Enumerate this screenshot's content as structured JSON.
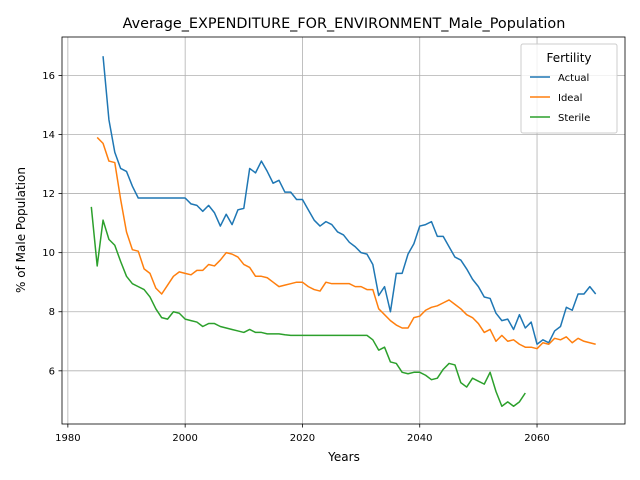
{
  "chart_data": {
    "type": "line",
    "title": "Average_EXPENDITURE_FOR_ENVIRONMENT_Male_Population",
    "xlabel": "Years",
    "ylabel": "% of Male Population",
    "xlim": [
      1979,
      2075
    ],
    "ylim": [
      4.2,
      17.3
    ],
    "xticks": [
      1980,
      2000,
      2020,
      2040,
      2060
    ],
    "yticks": [
      6,
      8,
      10,
      12,
      14,
      16
    ],
    "grid": true,
    "legend": {
      "title": "Fertility",
      "position": "upper right"
    },
    "series": [
      {
        "name": "Actual",
        "color": "#1f77b4",
        "points": [
          [
            1986,
            16.65
          ],
          [
            1987,
            14.5
          ],
          [
            1988,
            13.4
          ],
          [
            1989,
            12.85
          ],
          [
            1990,
            12.75
          ],
          [
            1991,
            12.25
          ],
          [
            1992,
            11.85
          ],
          [
            1993,
            11.85
          ],
          [
            1994,
            11.85
          ],
          [
            1995,
            11.85
          ],
          [
            1996,
            11.85
          ],
          [
            1997,
            11.85
          ],
          [
            1998,
            11.85
          ],
          [
            1999,
            11.85
          ],
          [
            2000,
            11.85
          ],
          [
            2001,
            11.65
          ],
          [
            2002,
            11.6
          ],
          [
            2003,
            11.4
          ],
          [
            2004,
            11.6
          ],
          [
            2005,
            11.35
          ],
          [
            2006,
            10.9
          ],
          [
            2007,
            11.3
          ],
          [
            2008,
            10.95
          ],
          [
            2009,
            11.45
          ],
          [
            2010,
            11.5
          ],
          [
            2011,
            12.85
          ],
          [
            2012,
            12.7
          ],
          [
            2013,
            13.1
          ],
          [
            2014,
            12.75
          ],
          [
            2015,
            12.35
          ],
          [
            2016,
            12.45
          ],
          [
            2017,
            12.05
          ],
          [
            2018,
            12.05
          ],
          [
            2019,
            11.8
          ],
          [
            2020,
            11.8
          ],
          [
            2021,
            11.45
          ],
          [
            2022,
            11.1
          ],
          [
            2023,
            10.9
          ],
          [
            2024,
            11.05
          ],
          [
            2025,
            10.95
          ],
          [
            2026,
            10.7
          ],
          [
            2027,
            10.6
          ],
          [
            2028,
            10.35
          ],
          [
            2029,
            10.2
          ],
          [
            2030,
            10.0
          ],
          [
            2031,
            9.95
          ],
          [
            2032,
            9.6
          ],
          [
            2033,
            8.55
          ],
          [
            2034,
            8.85
          ],
          [
            2035,
            8.0
          ],
          [
            2036,
            9.3
          ],
          [
            2037,
            9.3
          ],
          [
            2038,
            9.95
          ],
          [
            2039,
            10.3
          ],
          [
            2040,
            10.9
          ],
          [
            2041,
            10.95
          ],
          [
            2042,
            11.05
          ],
          [
            2043,
            10.55
          ],
          [
            2044,
            10.55
          ],
          [
            2045,
            10.2
          ],
          [
            2046,
            9.85
          ],
          [
            2047,
            9.75
          ],
          [
            2048,
            9.45
          ],
          [
            2049,
            9.1
          ],
          [
            2050,
            8.85
          ],
          [
            2051,
            8.5
          ],
          [
            2052,
            8.45
          ],
          [
            2053,
            7.95
          ],
          [
            2054,
            7.7
          ],
          [
            2055,
            7.75
          ],
          [
            2056,
            7.4
          ],
          [
            2057,
            7.9
          ],
          [
            2058,
            7.45
          ],
          [
            2059,
            7.65
          ],
          [
            2060,
            6.9
          ],
          [
            2061,
            7.05
          ],
          [
            2062,
            6.95
          ],
          [
            2063,
            7.35
          ],
          [
            2064,
            7.5
          ],
          [
            2065,
            8.15
          ],
          [
            2066,
            8.05
          ],
          [
            2067,
            8.6
          ],
          [
            2068,
            8.6
          ],
          [
            2069,
            8.85
          ],
          [
            2070,
            8.6
          ]
        ]
      },
      {
        "name": "Ideal",
        "color": "#ff7f0e",
        "points": [
          [
            1985,
            13.9
          ],
          [
            1986,
            13.7
          ],
          [
            1987,
            13.1
          ],
          [
            1988,
            13.05
          ],
          [
            1989,
            11.8
          ],
          [
            1990,
            10.7
          ],
          [
            1991,
            10.1
          ],
          [
            1992,
            10.05
          ],
          [
            1993,
            9.45
          ],
          [
            1994,
            9.3
          ],
          [
            1995,
            8.8
          ],
          [
            1996,
            8.6
          ],
          [
            1997,
            8.9
          ],
          [
            1998,
            9.2
          ],
          [
            1999,
            9.35
          ],
          [
            2000,
            9.3
          ],
          [
            2001,
            9.25
          ],
          [
            2002,
            9.4
          ],
          [
            2003,
            9.4
          ],
          [
            2004,
            9.6
          ],
          [
            2005,
            9.55
          ],
          [
            2006,
            9.75
          ],
          [
            2007,
            10.0
          ],
          [
            2008,
            9.95
          ],
          [
            2009,
            9.85
          ],
          [
            2010,
            9.6
          ],
          [
            2011,
            9.5
          ],
          [
            2012,
            9.2
          ],
          [
            2013,
            9.2
          ],
          [
            2014,
            9.15
          ],
          [
            2015,
            9.0
          ],
          [
            2016,
            8.85
          ],
          [
            2017,
            8.9
          ],
          [
            2018,
            8.95
          ],
          [
            2019,
            9.0
          ],
          [
            2020,
            9.0
          ],
          [
            2021,
            8.85
          ],
          [
            2022,
            8.75
          ],
          [
            2023,
            8.7
          ],
          [
            2024,
            9.0
          ],
          [
            2025,
            8.95
          ],
          [
            2026,
            8.95
          ],
          [
            2027,
            8.95
          ],
          [
            2028,
            8.95
          ],
          [
            2029,
            8.85
          ],
          [
            2030,
            8.85
          ],
          [
            2031,
            8.75
          ],
          [
            2032,
            8.75
          ],
          [
            2033,
            8.1
          ],
          [
            2034,
            7.9
          ],
          [
            2035,
            7.7
          ],
          [
            2036,
            7.55
          ],
          [
            2037,
            7.45
          ],
          [
            2038,
            7.45
          ],
          [
            2039,
            7.8
          ],
          [
            2040,
            7.85
          ],
          [
            2041,
            8.05
          ],
          [
            2042,
            8.15
          ],
          [
            2043,
            8.2
          ],
          [
            2044,
            8.3
          ],
          [
            2045,
            8.4
          ],
          [
            2046,
            8.25
          ],
          [
            2047,
            8.1
          ],
          [
            2048,
            7.9
          ],
          [
            2049,
            7.8
          ],
          [
            2050,
            7.6
          ],
          [
            2051,
            7.3
          ],
          [
            2052,
            7.4
          ],
          [
            2053,
            7.0
          ],
          [
            2054,
            7.2
          ],
          [
            2055,
            7.0
          ],
          [
            2056,
            7.05
          ],
          [
            2057,
            6.9
          ],
          [
            2058,
            6.8
          ],
          [
            2059,
            6.8
          ],
          [
            2060,
            6.75
          ],
          [
            2061,
            6.95
          ],
          [
            2062,
            6.9
          ],
          [
            2063,
            7.1
          ],
          [
            2064,
            7.05
          ],
          [
            2065,
            7.15
          ],
          [
            2066,
            6.95
          ],
          [
            2067,
            7.1
          ],
          [
            2068,
            7.0
          ],
          [
            2069,
            6.95
          ],
          [
            2070,
            6.9
          ]
        ]
      },
      {
        "name": "Sterile",
        "color": "#2ca02c",
        "points": [
          [
            1984,
            11.55
          ],
          [
            1985,
            9.55
          ],
          [
            1986,
            11.1
          ],
          [
            1987,
            10.45
          ],
          [
            1988,
            10.25
          ],
          [
            1989,
            9.7
          ],
          [
            1990,
            9.2
          ],
          [
            1991,
            8.95
          ],
          [
            1992,
            8.85
          ],
          [
            1993,
            8.75
          ],
          [
            1994,
            8.5
          ],
          [
            1995,
            8.1
          ],
          [
            1996,
            7.8
          ],
          [
            1997,
            7.75
          ],
          [
            1998,
            8.0
          ],
          [
            1999,
            7.95
          ],
          [
            2000,
            7.75
          ],
          [
            2001,
            7.7
          ],
          [
            2002,
            7.65
          ],
          [
            2003,
            7.5
          ],
          [
            2004,
            7.6
          ],
          [
            2005,
            7.6
          ],
          [
            2006,
            7.5
          ],
          [
            2007,
            7.45
          ],
          [
            2008,
            7.4
          ],
          [
            2009,
            7.35
          ],
          [
            2010,
            7.3
          ],
          [
            2011,
            7.4
          ],
          [
            2012,
            7.3
          ],
          [
            2013,
            7.3
          ],
          [
            2014,
            7.25
          ],
          [
            2015,
            7.25
          ],
          [
            2016,
            7.25
          ],
          [
            2017,
            7.22
          ],
          [
            2018,
            7.2
          ],
          [
            2019,
            7.2
          ],
          [
            2020,
            7.2
          ],
          [
            2021,
            7.2
          ],
          [
            2022,
            7.2
          ],
          [
            2023,
            7.2
          ],
          [
            2024,
            7.2
          ],
          [
            2025,
            7.2
          ],
          [
            2026,
            7.2
          ],
          [
            2027,
            7.2
          ],
          [
            2028,
            7.2
          ],
          [
            2029,
            7.2
          ],
          [
            2030,
            7.2
          ],
          [
            2031,
            7.2
          ],
          [
            2032,
            7.05
          ],
          [
            2033,
            6.7
          ],
          [
            2034,
            6.8
          ],
          [
            2035,
            6.3
          ],
          [
            2036,
            6.25
          ],
          [
            2037,
            5.95
          ],
          [
            2038,
            5.9
          ],
          [
            2039,
            5.95
          ],
          [
            2040,
            5.95
          ],
          [
            2041,
            5.85
          ],
          [
            2042,
            5.7
          ],
          [
            2043,
            5.75
          ],
          [
            2044,
            6.05
          ],
          [
            2045,
            6.25
          ],
          [
            2046,
            6.2
          ],
          [
            2047,
            5.6
          ],
          [
            2048,
            5.45
          ],
          [
            2049,
            5.75
          ],
          [
            2050,
            5.65
          ],
          [
            2051,
            5.55
          ],
          [
            2052,
            5.95
          ],
          [
            2053,
            5.3
          ],
          [
            2054,
            4.8
          ],
          [
            2055,
            4.95
          ],
          [
            2056,
            4.8
          ],
          [
            2057,
            4.95
          ],
          [
            2058,
            5.25
          ]
        ]
      }
    ]
  }
}
